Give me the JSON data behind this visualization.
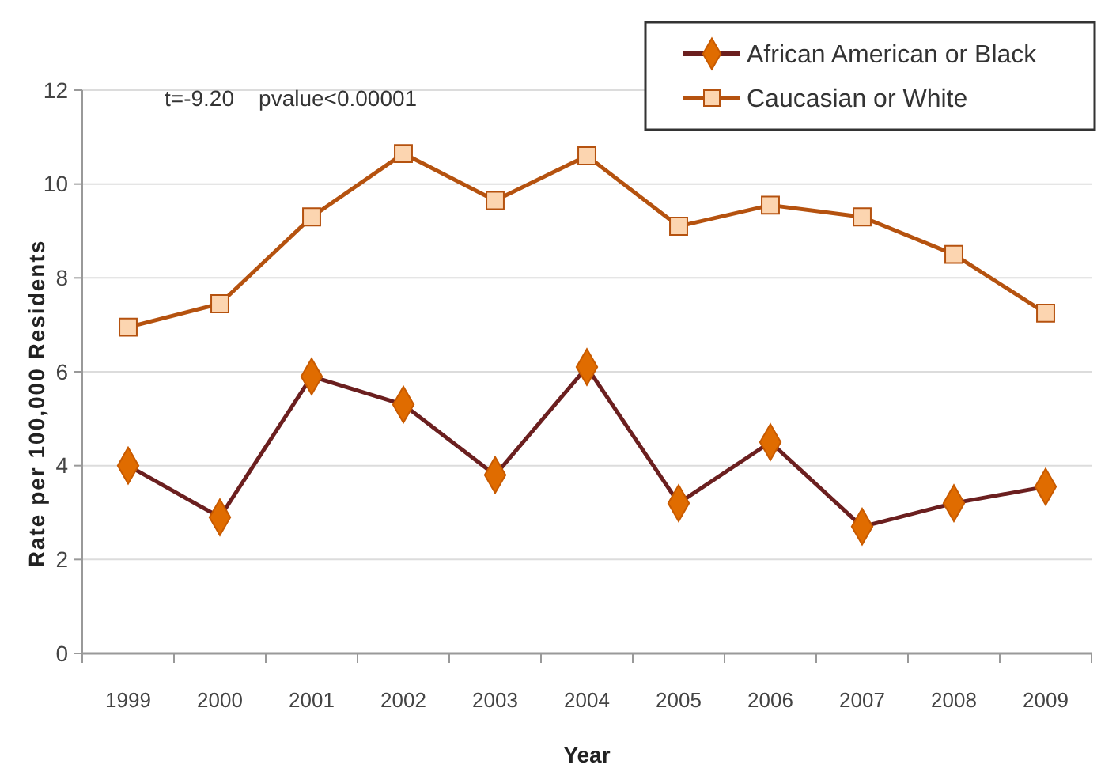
{
  "chart_data": {
    "type": "line",
    "xlabel": "Year",
    "ylabel": "Rate per 100,000 Residents",
    "categories": [
      "1999",
      "2000",
      "2001",
      "2002",
      "2003",
      "2004",
      "2005",
      "2006",
      "2007",
      "2008",
      "2009"
    ],
    "series": [
      {
        "name": "African American or Black",
        "color": "#6b1f1f",
        "marker": "diamond",
        "values": [
          4.0,
          2.9,
          5.9,
          5.3,
          3.8,
          6.1,
          3.2,
          4.5,
          2.7,
          3.2,
          3.55
        ]
      },
      {
        "name": "Caucasian or White",
        "color": "#b5520f",
        "marker": "square",
        "values": [
          6.95,
          7.45,
          9.3,
          10.65,
          9.65,
          10.6,
          9.1,
          9.55,
          9.3,
          8.5,
          7.25
        ]
      }
    ],
    "ylim": [
      0,
      12
    ],
    "yticks": [
      0,
      2,
      4,
      6,
      8,
      10,
      12
    ],
    "grid": "y",
    "legend": "top right",
    "annotations": [
      "t=-9.20    pvalue<0.00001"
    ]
  }
}
